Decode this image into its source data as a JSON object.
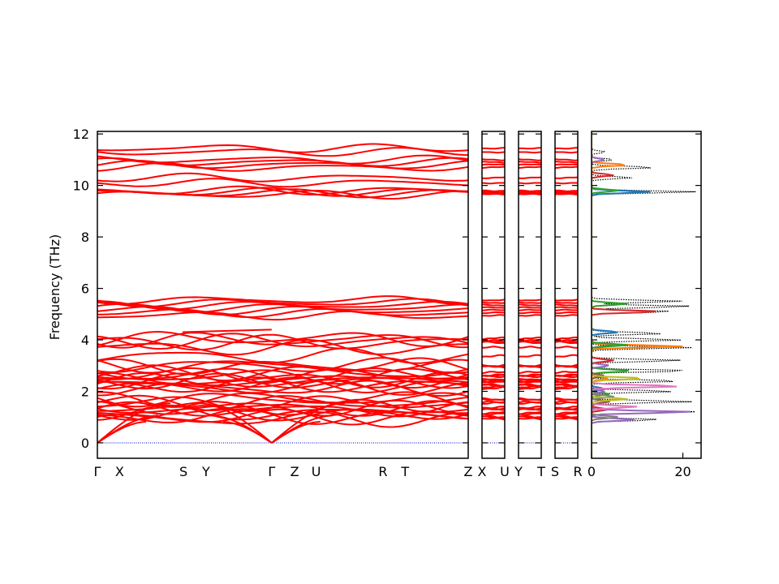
{
  "chart_data": {
    "type": "line",
    "title": "",
    "ylabel": "Frequency (THz)",
    "ylim": [
      -0.6,
      12.1
    ],
    "yticks": [
      0,
      2,
      4,
      6,
      8,
      10,
      12
    ],
    "grid": false,
    "band_colors": {
      "band": "#ff0000",
      "zero_line": "#0000cc",
      "dos_total": "#000000"
    },
    "band_panels": [
      {
        "labels": [
          "Γ",
          "X",
          "S",
          "Y",
          "Γ",
          "Z",
          "U",
          "R",
          "T",
          "Z"
        ],
        "label_positions": [
          0,
          0.06,
          0.232,
          0.293,
          0.47,
          0.532,
          0.59,
          0.77,
          0.83,
          1.0
        ],
        "segment_boundaries": [
          0,
          0.47,
          1.0
        ]
      },
      {
        "labels": [
          "X",
          "U"
        ],
        "label_positions": [
          0,
          1
        ]
      },
      {
        "labels": [
          "Y",
          "T"
        ],
        "label_positions": [
          0,
          1
        ]
      },
      {
        "labels": [
          "S",
          "R"
        ],
        "label_positions": [
          0,
          1
        ]
      }
    ],
    "band_energies_flat": [
      9.65,
      9.7,
      9.75,
      9.8,
      10.1,
      10.3,
      10.7,
      10.8,
      10.9,
      11.0,
      11.3,
      11.45,
      4.95,
      5.05,
      5.15,
      5.25,
      5.35,
      5.45,
      5.55
    ],
    "acoustic_branches": [
      {
        "gamma_to_x_end": 0.45
      },
      {
        "gamma_to_x_end": 0.6
      },
      {
        "gamma_to_x_end": 0.9
      }
    ],
    "dos_panel": {
      "xlim": [
        0,
        24
      ],
      "xticks": [
        0,
        20
      ],
      "series": [
        {
          "color": "#000000",
          "style": "dotted",
          "peaks": [
            [
              11.3,
              3
            ],
            [
              11.0,
              5
            ],
            [
              10.7,
              14
            ],
            [
              10.3,
              9
            ],
            [
              9.75,
              23
            ],
            [
              5.5,
              20
            ],
            [
              5.3,
              22
            ],
            [
              5.1,
              18
            ],
            [
              4.25,
              16
            ],
            [
              4.0,
              20
            ],
            [
              3.7,
              22
            ],
            [
              3.2,
              20
            ],
            [
              2.8,
              22
            ],
            [
              2.4,
              20
            ],
            [
              2.0,
              18
            ],
            [
              1.6,
              22
            ],
            [
              1.2,
              23
            ],
            [
              0.9,
              15
            ]
          ]
        },
        {
          "color": "#1f77b4",
          "style": "solid",
          "peaks": [
            [
              9.75,
              13
            ],
            [
              4.3,
              6
            ],
            [
              3.8,
              5
            ],
            [
              2.1,
              3
            ]
          ]
        },
        {
          "color": "#ff7f0e",
          "style": "solid",
          "peaks": [
            [
              10.8,
              8
            ],
            [
              3.75,
              20
            ],
            [
              2.5,
              4
            ]
          ]
        },
        {
          "color": "#2ca02c",
          "style": "solid",
          "peaks": [
            [
              9.8,
              6
            ],
            [
              5.4,
              8
            ],
            [
              3.8,
              8
            ],
            [
              2.8,
              9
            ],
            [
              1.9,
              4
            ]
          ]
        },
        {
          "color": "#d62728",
          "style": "solid",
          "peaks": [
            [
              10.4,
              5
            ],
            [
              5.1,
              15
            ],
            [
              3.2,
              5
            ],
            [
              1.3,
              4
            ]
          ]
        },
        {
          "color": "#9467bd",
          "style": "solid",
          "peaks": [
            [
              11.0,
              3
            ],
            [
              3.0,
              4
            ],
            [
              2.0,
              3
            ],
            [
              1.2,
              22
            ],
            [
              0.9,
              10
            ]
          ]
        },
        {
          "color": "#8c564b",
          "style": "solid",
          "peaks": [
            [
              2.6,
              3
            ],
            [
              1.6,
              4
            ]
          ]
        },
        {
          "color": "#e377c2",
          "style": "solid",
          "peaks": [
            [
              2.2,
              20
            ],
            [
              1.4,
              10
            ]
          ]
        },
        {
          "color": "#7f7f7f",
          "style": "solid",
          "peaks": [
            [
              1.8,
              5
            ],
            [
              1.0,
              6
            ]
          ]
        },
        {
          "color": "#bcbd22",
          "style": "solid",
          "peaks": [
            [
              2.5,
              12
            ],
            [
              1.7,
              8
            ]
          ]
        }
      ]
    }
  }
}
